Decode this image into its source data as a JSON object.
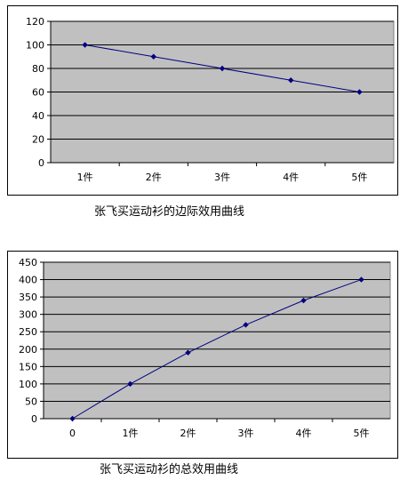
{
  "chart_data": [
    {
      "type": "line",
      "title": "",
      "caption": "张飞买运动衫的边际效用曲线",
      "xlabel": "",
      "ylabel": "",
      "categories": [
        "1件",
        "2件",
        "3件",
        "4件",
        "5件"
      ],
      "series": [
        {
          "values": [
            100,
            90,
            80,
            70,
            60
          ]
        }
      ],
      "ylim": [
        0,
        120
      ],
      "yticks": [
        0,
        20,
        40,
        60,
        80,
        100,
        120
      ],
      "grid": true,
      "plot_bg": "#c0c0c0",
      "line_color": "#000080"
    },
    {
      "type": "line",
      "title": "",
      "caption": "张飞买运动衫的总效用曲线",
      "xlabel": "",
      "ylabel": "",
      "categories": [
        "0",
        "1件",
        "2件",
        "3件",
        "4件",
        "5件"
      ],
      "series": [
        {
          "values": [
            0,
            100,
            190,
            270,
            340,
            400
          ]
        }
      ],
      "ylim": [
        0,
        450
      ],
      "yticks": [
        0,
        50,
        100,
        150,
        200,
        250,
        300,
        350,
        400,
        450
      ],
      "grid": true,
      "plot_bg": "#c0c0c0",
      "line_color": "#000080"
    }
  ]
}
